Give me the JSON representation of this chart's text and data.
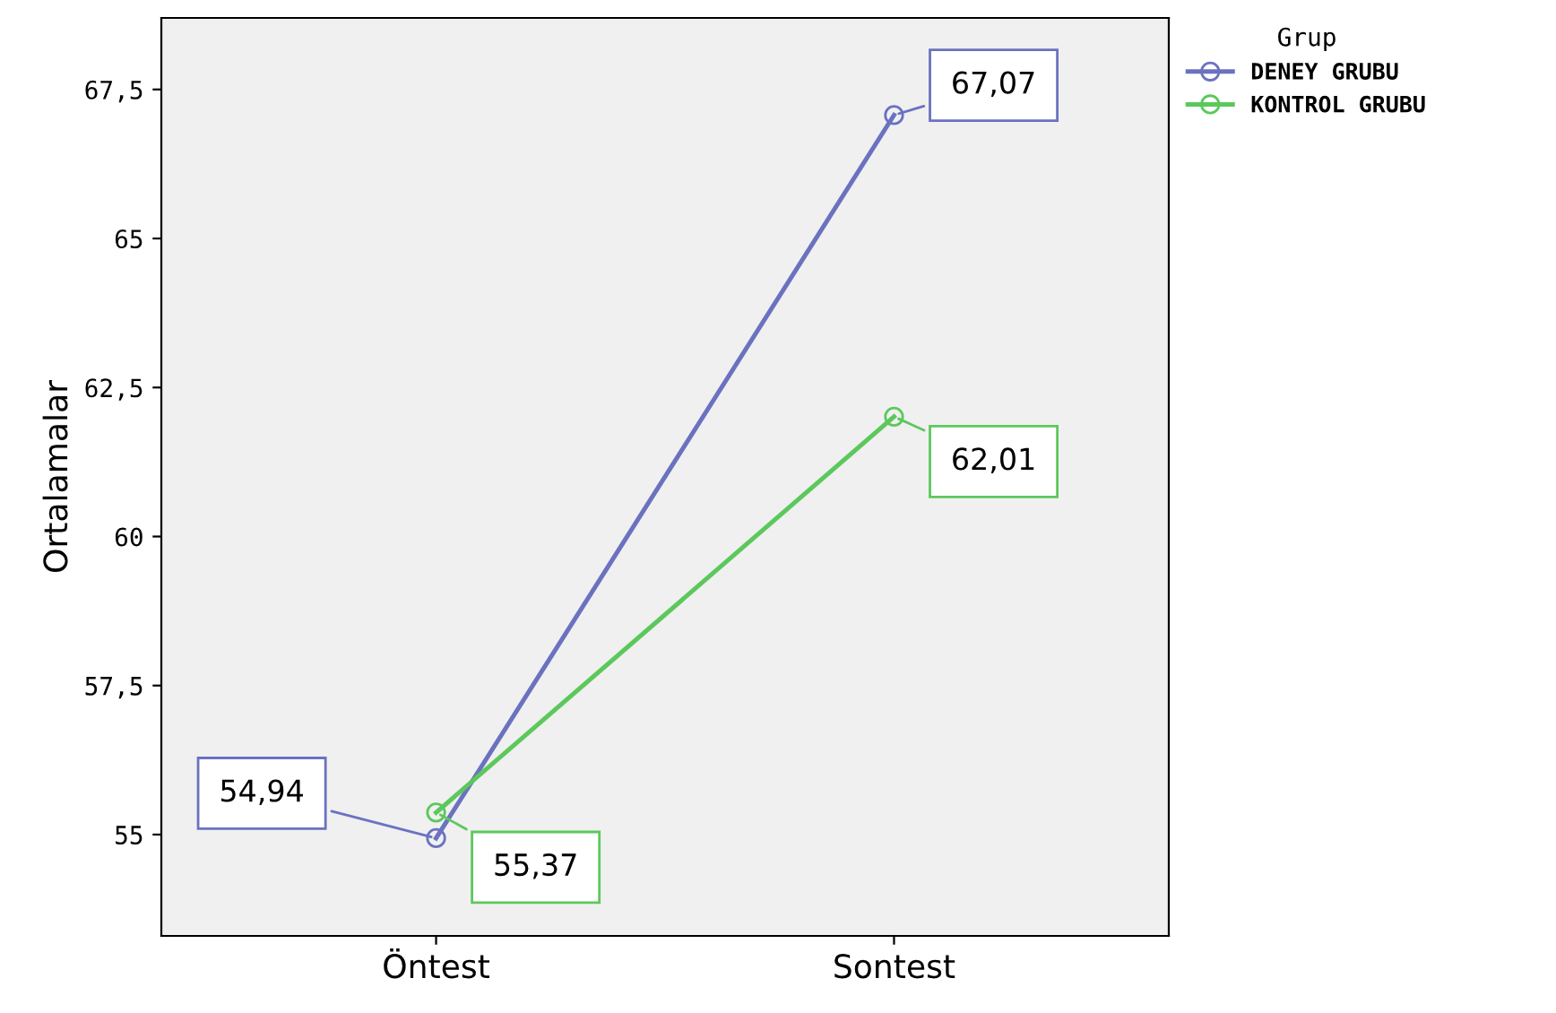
{
  "chart_data": {
    "type": "line",
    "ylabel": "Ortalamalar",
    "legend_title": "Grup",
    "categories": [
      "Öntest",
      "Sontest"
    ],
    "series": [
      {
        "name": "DENEY GRUBU",
        "color": "#6a72c0",
        "values": [
          54.94,
          67.07
        ],
        "value_labels": [
          "54,94",
          "67,07"
        ]
      },
      {
        "name": "KONTROL GRUBU",
        "color": "#5cc85c",
        "values": [
          55.37,
          62.01
        ],
        "value_labels": [
          "55,37",
          "62,01"
        ]
      }
    ],
    "ylim": [
      53.3,
      68.7
    ],
    "yticks": [
      {
        "value": 55,
        "label": "55"
      },
      {
        "value": 57.5,
        "label": "57,5"
      },
      {
        "value": 60,
        "label": "60"
      },
      {
        "value": 62.5,
        "label": "62,5"
      },
      {
        "value": 65,
        "label": "65"
      },
      {
        "value": 67.5,
        "label": "67,5"
      }
    ],
    "marker": "circle",
    "line_style": "solid",
    "legend": "right",
    "grid": false
  }
}
